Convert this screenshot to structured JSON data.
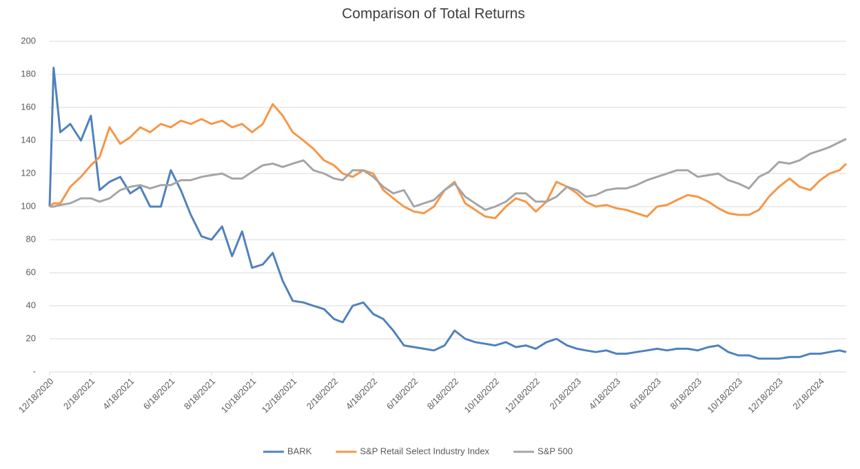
{
  "chart_data": {
    "type": "line",
    "title": "Comparison of Total Returns",
    "x": [
      "12/18/2020",
      "12/24/2020",
      "1/3/2021",
      "1/18/2021",
      "2/3/2021",
      "2/18/2021",
      "3/3/2021",
      "3/18/2021",
      "4/3/2021",
      "4/18/2021",
      "5/3/2021",
      "5/18/2021",
      "6/3/2021",
      "6/18/2021",
      "7/3/2021",
      "7/18/2021",
      "8/3/2021",
      "8/18/2021",
      "9/3/2021",
      "9/18/2021",
      "10/3/2021",
      "10/18/2021",
      "11/3/2021",
      "11/18/2021",
      "12/3/2021",
      "12/18/2021",
      "1/3/2022",
      "1/18/2022",
      "2/3/2022",
      "2/18/2022",
      "3/3/2022",
      "3/18/2022",
      "4/3/2022",
      "4/18/2022",
      "5/3/2022",
      "5/18/2022",
      "6/3/2022",
      "6/18/2022",
      "7/3/2022",
      "7/18/2022",
      "8/3/2022",
      "8/18/2022",
      "9/3/2022",
      "9/18/2022",
      "10/3/2022",
      "10/18/2022",
      "11/3/2022",
      "11/18/2022",
      "12/3/2022",
      "12/18/2022",
      "1/3/2023",
      "1/18/2023",
      "2/3/2023",
      "2/18/2023",
      "3/3/2023",
      "3/18/2023",
      "4/3/2023",
      "4/18/2023",
      "5/3/2023",
      "5/18/2023",
      "6/3/2023",
      "6/18/2023",
      "7/3/2023",
      "7/18/2023",
      "8/3/2023",
      "8/18/2023",
      "9/3/2023",
      "9/18/2023",
      "10/3/2023",
      "10/18/2023",
      "11/3/2023",
      "11/18/2023",
      "12/3/2023",
      "12/18/2023",
      "1/3/2024",
      "1/18/2024",
      "2/3/2024",
      "2/18/2024",
      "3/3/2024",
      "3/18/2024",
      "3/28/2024"
    ],
    "series": [
      {
        "name": "BARK",
        "color": "#4f81bd",
        "values": [
          100,
          184,
          145,
          150,
          140,
          155,
          110,
          115,
          118,
          108,
          112,
          100,
          100,
          122,
          110,
          95,
          82,
          80,
          88,
          70,
          85,
          63,
          65,
          72,
          55,
          43,
          42,
          40,
          38,
          32,
          30,
          40,
          42,
          35,
          32,
          25,
          16,
          15,
          14,
          13,
          16,
          25,
          20,
          18,
          17,
          16,
          18,
          15,
          16,
          14,
          18,
          20,
          16,
          14,
          13,
          12,
          13,
          11,
          11,
          12,
          13,
          14,
          13,
          14,
          14,
          13,
          15,
          16,
          12,
          10,
          10,
          8,
          8,
          8,
          9,
          9,
          11,
          11,
          12,
          13,
          12
        ]
      },
      {
        "name": "S&P Retail Select Industry Index",
        "color": "#f79646",
        "values": [
          100,
          102,
          102,
          112,
          118,
          125,
          130,
          148,
          138,
          142,
          148,
          145,
          150,
          148,
          152,
          150,
          153,
          150,
          152,
          148,
          150,
          145,
          150,
          162,
          155,
          145,
          140,
          135,
          128,
          125,
          120,
          118,
          122,
          120,
          110,
          105,
          100,
          97,
          96,
          100,
          110,
          115,
          102,
          98,
          94,
          93,
          100,
          105,
          103,
          97,
          103,
          115,
          112,
          108,
          103,
          100,
          101,
          99,
          98,
          96,
          94,
          100,
          101,
          104,
          107,
          106,
          103,
          99,
          96,
          95,
          95,
          98,
          106,
          112,
          117,
          112,
          110,
          116,
          120,
          122,
          126
        ]
      },
      {
        "name": "S&P 500",
        "color": "#a5a5a5",
        "values": [
          100,
          100,
          101,
          102,
          105,
          105,
          103,
          105,
          110,
          112,
          113,
          111,
          113,
          113,
          116,
          116,
          118,
          119,
          120,
          117,
          117,
          121,
          125,
          126,
          124,
          126,
          128,
          122,
          120,
          117,
          116,
          122,
          122,
          118,
          112,
          108,
          110,
          100,
          102,
          104,
          110,
          114,
          106,
          102,
          98,
          100,
          103,
          108,
          108,
          103,
          103,
          106,
          112,
          110,
          106,
          107,
          110,
          111,
          111,
          113,
          116,
          118,
          120,
          122,
          122,
          118,
          119,
          120,
          116,
          114,
          111,
          118,
          121,
          127,
          126,
          128,
          132,
          134,
          136,
          139,
          141
        ]
      }
    ],
    "xlim": [
      "12/18/2020",
      "3/28/2024"
    ],
    "xticks": [
      "12/18/2020",
      "2/18/2021",
      "4/18/2021",
      "6/18/2021",
      "8/18/2021",
      "10/18/2021",
      "12/18/2021",
      "2/18/2022",
      "4/18/2022",
      "6/18/2022",
      "8/18/2022",
      "10/18/2022",
      "12/18/2022",
      "2/18/2023",
      "4/18/2023",
      "6/18/2023",
      "8/18/2023",
      "10/18/2023",
      "12/18/2023",
      "2/18/2024"
    ],
    "ylim": [
      0,
      200
    ],
    "yticks": [
      {
        "value": 0,
        "label": "-"
      },
      20,
      40,
      60,
      80,
      100,
      120,
      140,
      160,
      180,
      200
    ],
    "grid": true
  }
}
